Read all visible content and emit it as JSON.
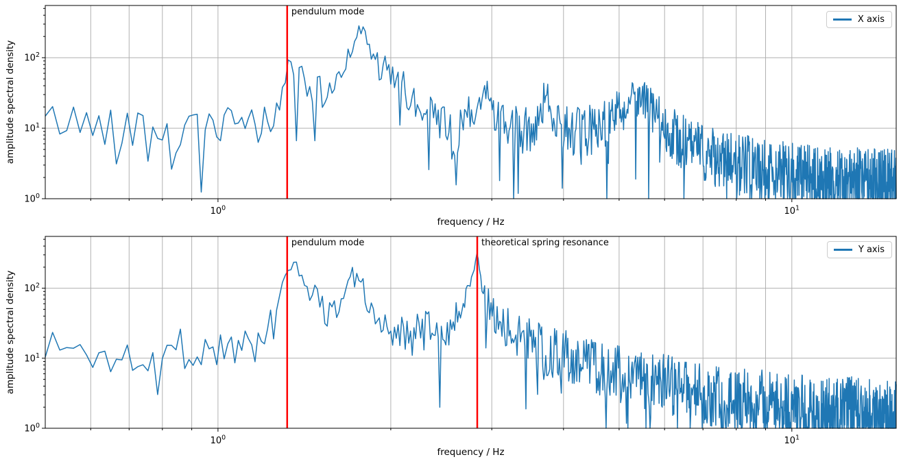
{
  "figure": {
    "background": "#ffffff",
    "series_color": "#1f77b4",
    "vline_color": "#ff0000",
    "grid_color": "#b0b0b0",
    "spine_color": "#000000"
  },
  "chart_data": [
    {
      "type": "line",
      "subplot": "top",
      "xlabel": "frequency / Hz",
      "ylabel": "amplitude spectral density",
      "x_scale": "log",
      "y_scale": "log",
      "xlim": [
        0.5,
        15.2
      ],
      "ylim": [
        1,
        550
      ],
      "x_major_ticks": [
        1,
        10
      ],
      "x_tick_labels": [
        "10^0",
        "10^1"
      ],
      "x_minor_ticks": [
        0.6,
        0.7,
        0.8,
        0.9,
        2,
        3,
        4,
        5,
        6,
        7,
        8,
        9
      ],
      "y_major_ticks": [
        1,
        10,
        100
      ],
      "y_tick_labels": [
        "10^0",
        "10^1",
        "10^2"
      ],
      "y_minor_ticks": [
        2,
        3,
        4,
        5,
        6,
        7,
        8,
        9,
        20,
        30,
        40,
        50,
        60,
        70,
        80,
        90,
        200,
        300,
        400,
        500
      ],
      "grid": {
        "x": "major+minor",
        "y": "major"
      },
      "legend": {
        "label": "X axis",
        "position": "upper right"
      },
      "vlines": [
        {
          "x": 1.32,
          "label": "pendulum mode",
          "color": "#ff0000"
        }
      ],
      "series": [
        {
          "name": "X axis",
          "color": "#1f77b4",
          "freq_start_hz": 0.5,
          "freq_step_hz": 0.015,
          "noise_seed": 42,
          "envelope_f_amp_noisedex": [
            [
              0.5,
              13,
              0.28
            ],
            [
              0.7,
              11,
              0.3
            ],
            [
              0.82,
              9,
              0.22
            ],
            [
              0.834,
              1.6,
              0.05
            ],
            [
              0.85,
              9,
              0.22
            ],
            [
              1.0,
              10,
              0.28
            ],
            [
              1.2,
              11,
              0.3
            ],
            [
              1.28,
              20,
              0.25
            ],
            [
              1.32,
              75,
              0.12
            ],
            [
              1.38,
              70,
              0.15
            ],
            [
              1.45,
              30,
              0.22
            ],
            [
              1.55,
              30,
              0.3
            ],
            [
              1.65,
              70,
              0.25
            ],
            [
              1.73,
              200,
              0.12
            ],
            [
              1.78,
              230,
              0.15
            ],
            [
              1.9,
              80,
              0.22
            ],
            [
              2.0,
              50,
              0.25
            ],
            [
              2.15,
              30,
              0.3
            ],
            [
              2.3,
              15,
              0.32
            ],
            [
              2.55,
              12,
              0.32
            ],
            [
              2.6,
              1.8,
              0.1
            ],
            [
              2.65,
              12,
              0.32
            ],
            [
              2.8,
              15,
              0.32
            ],
            [
              2.93,
              35,
              0.2
            ],
            [
              3.0,
              20,
              0.28
            ],
            [
              3.2,
              9,
              0.35
            ],
            [
              3.5,
              9,
              0.38
            ],
            [
              3.72,
              25,
              0.28
            ],
            [
              3.95,
              12,
              0.33
            ],
            [
              4.3,
              8,
              0.38
            ],
            [
              4.9,
              15,
              0.35
            ],
            [
              5.4,
              30,
              0.3
            ],
            [
              5.9,
              12,
              0.35
            ],
            [
              6.5,
              6,
              0.4
            ],
            [
              7.5,
              3.5,
              0.42
            ],
            [
              9.0,
              2.5,
              0.45
            ],
            [
              11.0,
              2.0,
              0.45
            ],
            [
              15.2,
              1.8,
              0.45
            ]
          ]
        }
      ]
    },
    {
      "type": "line",
      "subplot": "bottom",
      "xlabel": "frequency / Hz",
      "ylabel": "amplitude spectral density",
      "x_scale": "log",
      "y_scale": "log",
      "xlim": [
        0.5,
        15.2
      ],
      "ylim": [
        1,
        550
      ],
      "x_major_ticks": [
        1,
        10
      ],
      "x_tick_labels": [
        "10^0",
        "10^1"
      ],
      "x_minor_ticks": [
        0.6,
        0.7,
        0.8,
        0.9,
        2,
        3,
        4,
        5,
        6,
        7,
        8,
        9
      ],
      "y_major_ticks": [
        1,
        10,
        100
      ],
      "y_tick_labels": [
        "10^0",
        "10^1",
        "10^2"
      ],
      "y_minor_ticks": [
        2,
        3,
        4,
        5,
        6,
        7,
        8,
        9,
        20,
        30,
        40,
        50,
        60,
        70,
        80,
        90,
        200,
        300,
        400,
        500
      ],
      "grid": {
        "x": "major+minor",
        "y": "major"
      },
      "legend": {
        "label": "Y axis",
        "position": "upper right"
      },
      "vlines": [
        {
          "x": 1.32,
          "label": "pendulum mode",
          "color": "#ff0000"
        },
        {
          "x": 2.83,
          "label": "theoretical spring resonance",
          "color": "#ff0000"
        }
      ],
      "series": [
        {
          "name": "Y axis",
          "color": "#1f77b4",
          "freq_start_hz": 0.5,
          "freq_step_hz": 0.015,
          "noise_seed": 1337,
          "envelope_f_amp_noisedex": [
            [
              0.5,
              16,
              0.3
            ],
            [
              0.65,
              10,
              0.32
            ],
            [
              0.8,
              14,
              0.3
            ],
            [
              1.0,
              13,
              0.32
            ],
            [
              1.15,
              16,
              0.3
            ],
            [
              1.26,
              35,
              0.25
            ],
            [
              1.32,
              220,
              0.12
            ],
            [
              1.36,
              250,
              0.12
            ],
            [
              1.45,
              90,
              0.2
            ],
            [
              1.55,
              45,
              0.25
            ],
            [
              1.62,
              70,
              0.25
            ],
            [
              1.7,
              170,
              0.15
            ],
            [
              1.8,
              90,
              0.22
            ],
            [
              1.95,
              35,
              0.28
            ],
            [
              2.05,
              18,
              0.32
            ],
            [
              2.2,
              22,
              0.32
            ],
            [
              2.5,
              25,
              0.3
            ],
            [
              2.68,
              60,
              0.22
            ],
            [
              2.78,
              200,
              0.1
            ],
            [
              2.83,
              280,
              0.08
            ],
            [
              2.9,
              90,
              0.18
            ],
            [
              3.0,
              45,
              0.25
            ],
            [
              3.15,
              30,
              0.3
            ],
            [
              3.4,
              20,
              0.33
            ],
            [
              3.8,
              12,
              0.38
            ],
            [
              4.2,
              9,
              0.4
            ],
            [
              4.7,
              7,
              0.4
            ],
            [
              5.5,
              5,
              0.42
            ],
            [
              6.5,
              3.5,
              0.45
            ],
            [
              8.0,
              2.5,
              0.48
            ],
            [
              10.0,
              2.0,
              0.48
            ],
            [
              12.0,
              1.8,
              0.5
            ],
            [
              15.2,
              1.6,
              0.5
            ]
          ]
        }
      ]
    }
  ]
}
